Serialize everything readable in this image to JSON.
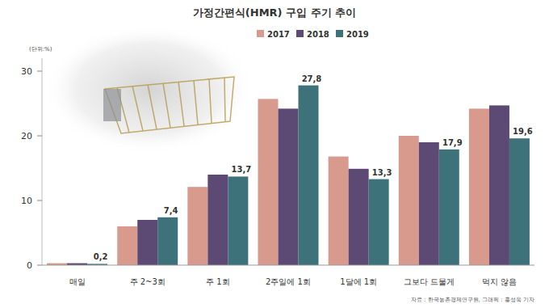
{
  "chart_data": {
    "type": "bar",
    "title": "가정간편식(HMR) 구입 주기 추이",
    "unit_label": "(단위:%)",
    "source": "자료 : 한국농촌경제연구원, 그래픽 : 홍성욱 기자",
    "categories": [
      "매일",
      "주 2~3회",
      "주 1회",
      "2주일에 1회",
      "1달에 1회",
      "그보다 드물게",
      "먹지 않음"
    ],
    "series": [
      {
        "name": "2017",
        "color": "#d99a8e",
        "values": [
          0.3,
          6.0,
          12.1,
          25.7,
          16.8,
          20.0,
          24.2
        ]
      },
      {
        "name": "2018",
        "color": "#5c4a74",
        "values": [
          0.3,
          7.0,
          14.0,
          24.2,
          14.9,
          19.0,
          24.7
        ]
      },
      {
        "name": "2019",
        "color": "#3d727a",
        "values": [
          0.2,
          7.4,
          13.7,
          27.8,
          13.3,
          17.9,
          19.6
        ],
        "value_labels": [
          "0,2",
          "7,4",
          "13,7",
          "27,8",
          "13,3",
          "17,9",
          "19,6"
        ],
        "data_labels": true
      }
    ],
    "ylim": [
      0,
      32
    ],
    "yticks": [
      0,
      10,
      20,
      30
    ],
    "grid": false,
    "legend": "top-right"
  }
}
